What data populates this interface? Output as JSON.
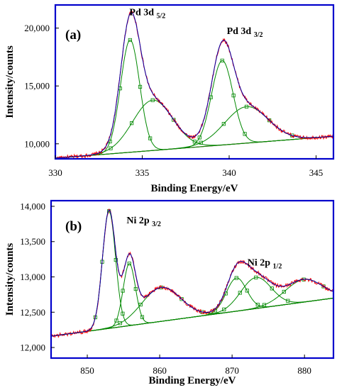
{
  "chart_data": [
    {
      "type": "line",
      "panel_label": "(a)",
      "xlabel": "Binding Energy/eV",
      "ylabel": "Intensity/counts",
      "xlim": [
        330,
        346
      ],
      "ylim": [
        8700,
        22000
      ],
      "x_ticks": [
        330,
        335,
        340,
        345
      ],
      "x_tick_labels": [
        "330",
        "335",
        "340",
        "345"
      ],
      "y_ticks": [
        10000,
        15000,
        20000
      ],
      "y_tick_labels": [
        "10,000",
        "15,000",
        "20,000"
      ],
      "annotations": [
        {
          "main": "Pd 3d",
          "sub": "5/2",
          "x": 335.3,
          "y": 21100
        },
        {
          "main": "Pd 3d",
          "sub": "3/2",
          "x": 340.9,
          "y": 19500
        }
      ],
      "baseline": {
        "x": [
          329.5,
          346
        ],
        "y": [
          8700,
          10650
        ]
      },
      "components": [
        {
          "center": 334.3,
          "height": 9700,
          "width": 0.55
        },
        {
          "center": 335.6,
          "height": 4350,
          "width": 1.15
        },
        {
          "center": 339.6,
          "height": 7300,
          "width": 0.62
        },
        {
          "center": 341.0,
          "height": 3150,
          "width": 1.25
        }
      ],
      "colors": {
        "raw": "#ff0000",
        "fit": "#0000aa",
        "components": "#008800",
        "baseline": "#8b2a1a",
        "frame": "#0000cc"
      }
    },
    {
      "type": "line",
      "panel_label": "(b)",
      "xlabel": "Binding Energy/eV",
      "ylabel": "Intensity/counts",
      "xlim": [
        845,
        884
      ],
      "ylim": [
        11850,
        14080
      ],
      "x_ticks": [
        850,
        860,
        870,
        880
      ],
      "x_tick_labels": [
        "850",
        "860",
        "870",
        "880"
      ],
      "y_ticks": [
        12000,
        12500,
        13000,
        13500,
        14000
      ],
      "y_tick_labels": [
        "12,000",
        "12,500",
        "13,000",
        "13,500",
        "14,000"
      ],
      "annotations": [
        {
          "main": "Ni 2p",
          "sub": "3/2",
          "x": 857.8,
          "y": 13760
        },
        {
          "main": "Ni 2p",
          "sub": "1/2",
          "x": 874.5,
          "y": 13160
        }
      ],
      "baseline": {
        "x": [
          845,
          884
        ],
        "y": [
          12160,
          12700
        ]
      },
      "components": [
        {
          "center": 853.0,
          "height": 1660,
          "width": 0.9
        },
        {
          "center": 855.8,
          "height": 880,
          "width": 0.85
        },
        {
          "center": 860.2,
          "height": 480,
          "width": 2.7
        },
        {
          "center": 870.6,
          "height": 470,
          "width": 1.4
        },
        {
          "center": 873.3,
          "height": 440,
          "width": 2.1
        },
        {
          "center": 879.9,
          "height": 320,
          "width": 2.6
        }
      ],
      "colors": {
        "raw": "#ff0000",
        "fit": "#0000aa",
        "components": "#008800",
        "baseline": "#8b2a1a",
        "frame": "#0000cc"
      }
    }
  ]
}
